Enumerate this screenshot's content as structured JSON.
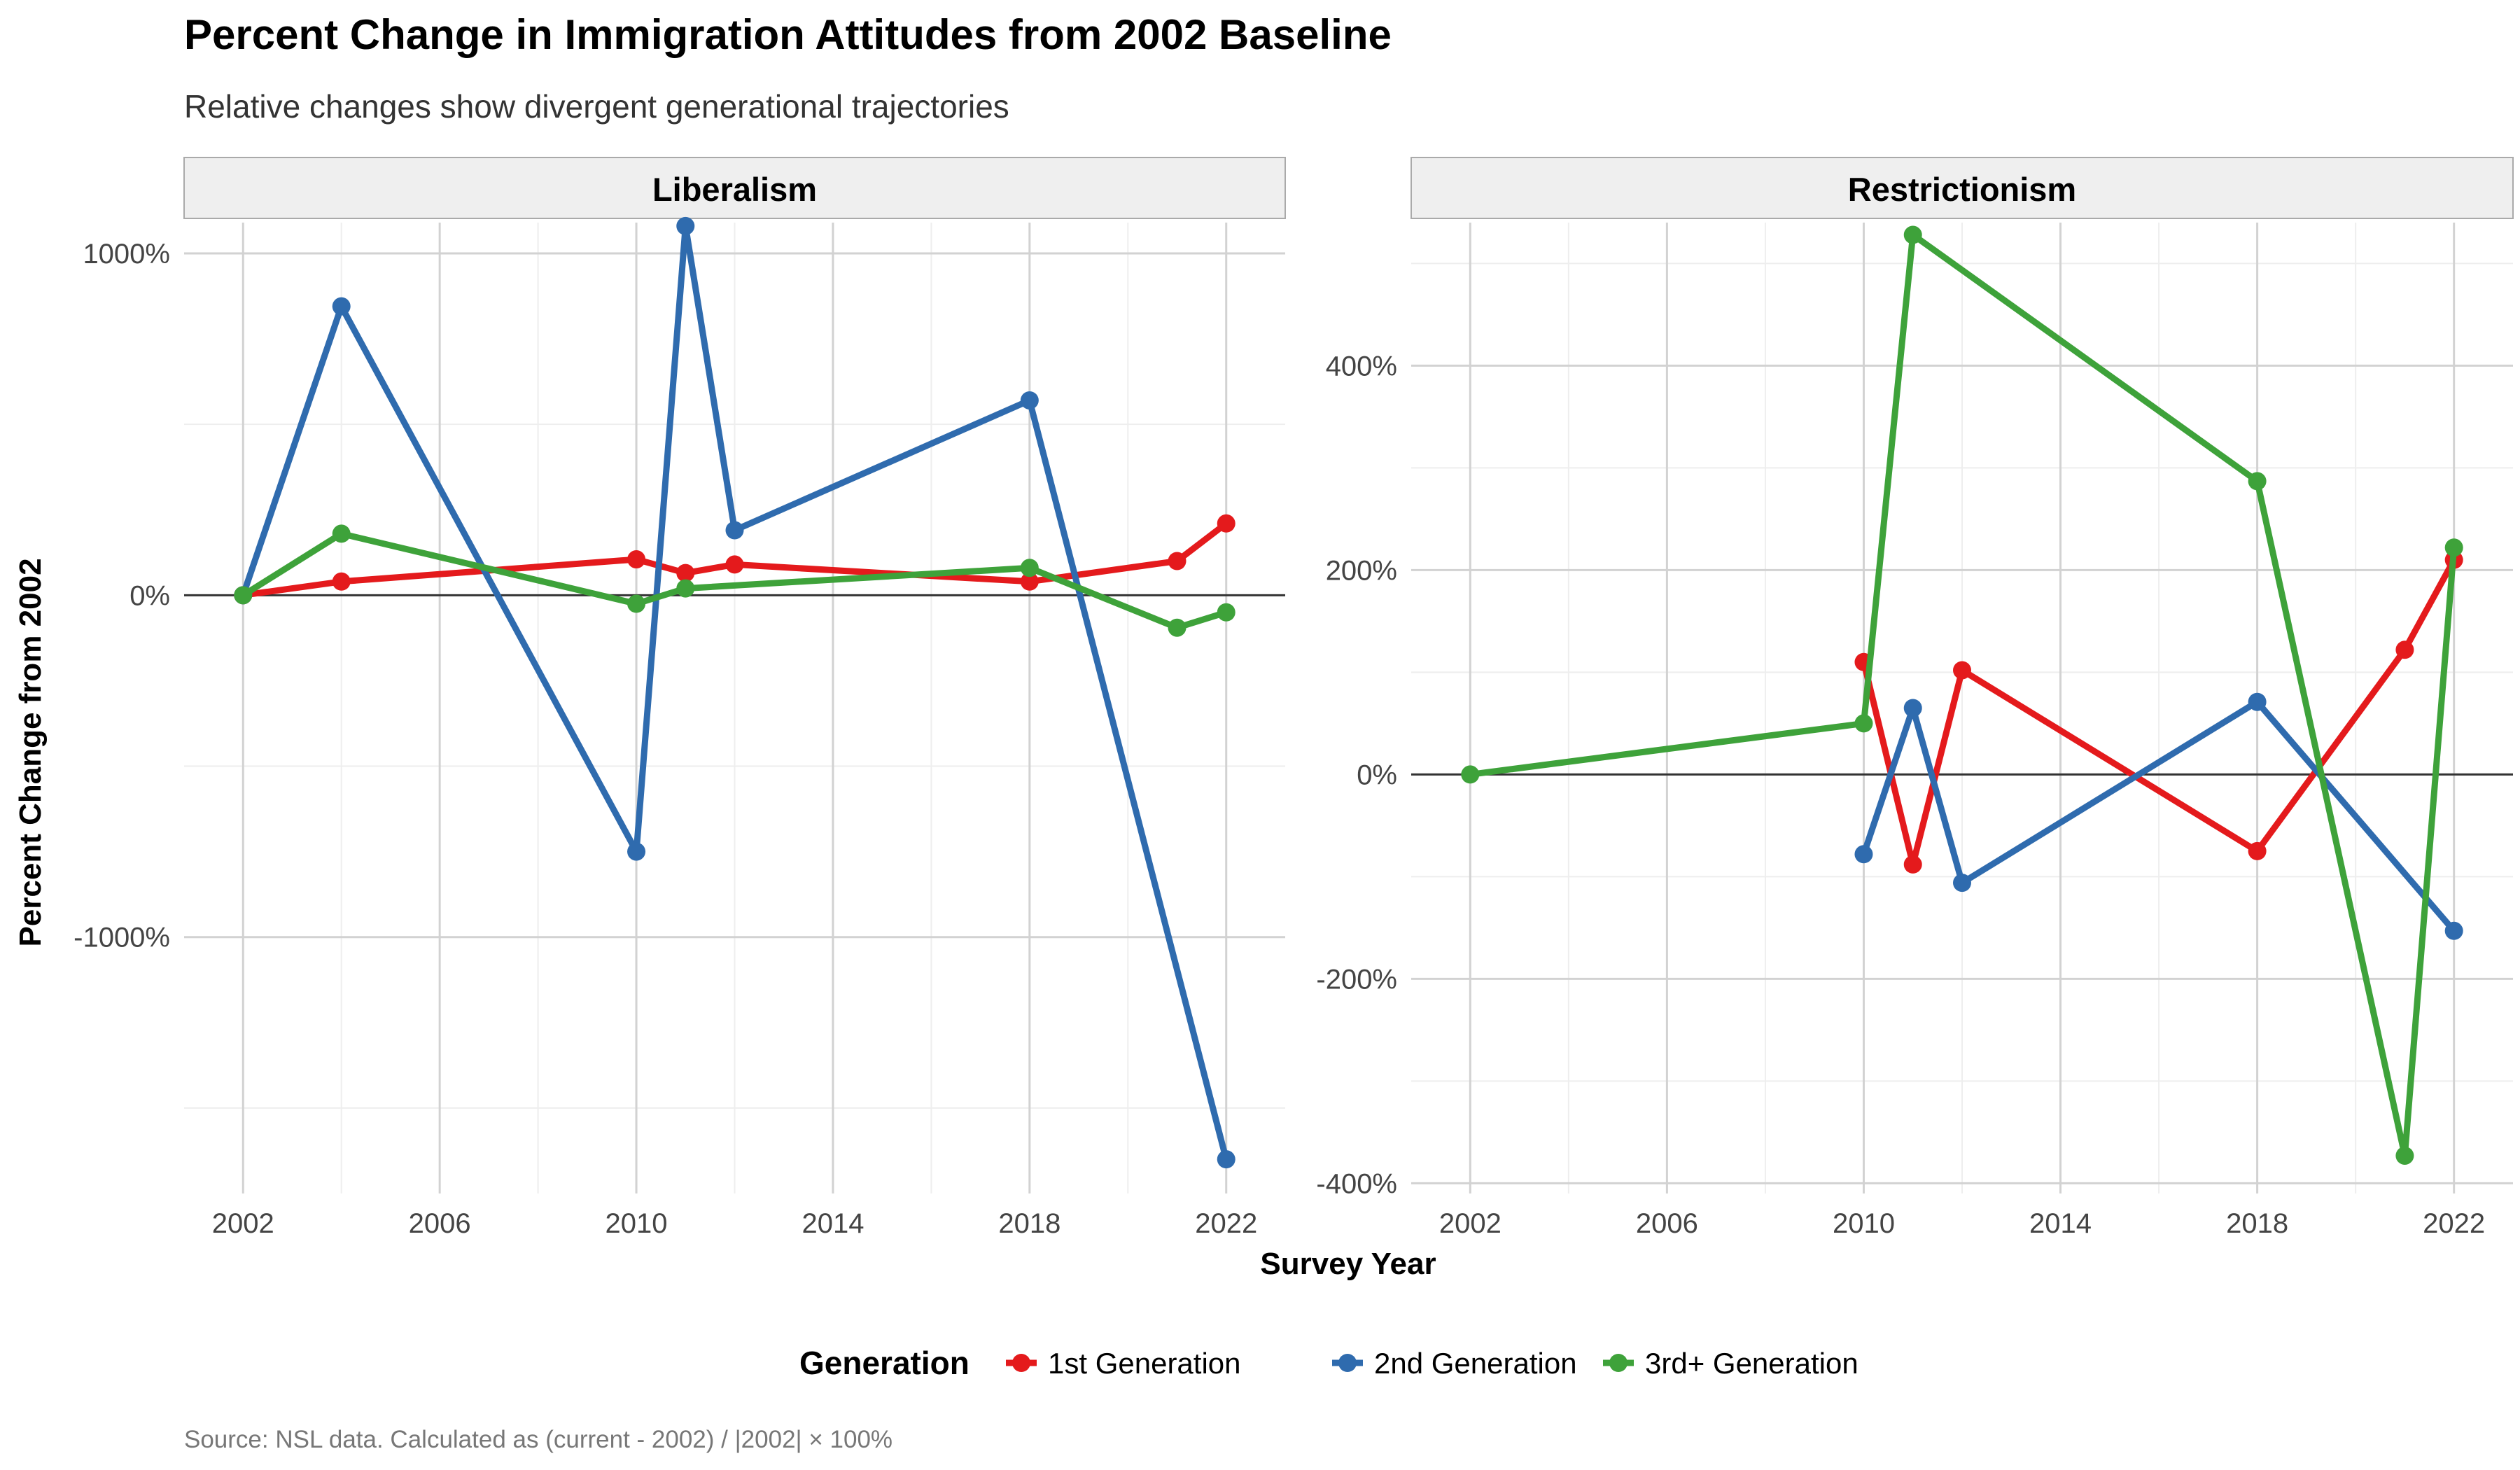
{
  "chart_data": {
    "type": "line",
    "title": "Percent Change in Immigration Attitudes from 2002 Baseline",
    "subtitle": "Relative changes show divergent generational trajectories",
    "xlabel": "Survey Year",
    "ylabel": "Percent Change from 2002",
    "caption": "Source: NSL data. Calculated as (current - 2002) / |2002| × 100%",
    "grid": true,
    "legend": {
      "title": "Generation",
      "position": "bottom",
      "entries": [
        "1st Generation",
        "2nd Generation",
        "3rd+ Generation"
      ]
    },
    "colors": {
      "1st Generation": "#E41A1C",
      "2nd Generation": "#2F6BAE",
      "3rd+ Generation": "#3EA23A"
    },
    "x_ticks": [
      2002,
      2006,
      2010,
      2014,
      2018,
      2022
    ],
    "panels": [
      {
        "facet": "Liberalism",
        "ylim": [
          -1750,
          1090
        ],
        "y_ticks": [
          1000,
          0,
          -1000
        ],
        "y_tick_labels": [
          "1000%",
          "0%",
          "-1000%"
        ],
        "baseline": 0,
        "series": [
          {
            "name": "1st Generation",
            "points": [
              [
                2002,
                0
              ],
              [
                2004,
                40
              ],
              [
                2010,
                105
              ],
              [
                2011,
                65
              ],
              [
                2012,
                90
              ],
              [
                2018,
                40
              ],
              [
                2021,
                100
              ],
              [
                2022,
                210
              ]
            ]
          },
          {
            "name": "2nd Generation",
            "points": [
              [
                2002,
                0
              ],
              [
                2004,
                845
              ],
              [
                2010,
                -750
              ],
              [
                2011,
                1080
              ],
              [
                2012,
                190
              ],
              [
                2018,
                570
              ],
              [
                2022,
                -1650
              ]
            ]
          },
          {
            "name": "3rd+ Generation",
            "points": [
              [
                2002,
                0
              ],
              [
                2004,
                180
              ],
              [
                2010,
                -25
              ],
              [
                2011,
                20
              ],
              [
                2018,
                80
              ],
              [
                2021,
                -95
              ],
              [
                2022,
                -50
              ]
            ]
          }
        ]
      },
      {
        "facet": "Restrictionism",
        "ylim": [
          -410,
          540
        ],
        "y_ticks": [
          400,
          200,
          0,
          -200,
          -400
        ],
        "y_tick_labels": [
          "400%",
          "200%",
          "0%",
          "-200%",
          "-400%"
        ],
        "baseline": 0,
        "series": [
          {
            "name": "1st Generation",
            "points": [
              [
                2010,
                110
              ],
              [
                2011,
                -88
              ],
              [
                2012,
                102
              ],
              [
                2018,
                -75
              ],
              [
                2021,
                122
              ],
              [
                2022,
                210
              ]
            ]
          },
          {
            "name": "2nd Generation",
            "points": [
              [
                2010,
                -78
              ],
              [
                2011,
                65
              ],
              [
                2012,
                -106
              ],
              [
                2018,
                71
              ],
              [
                2022,
                -153
              ]
            ]
          },
          {
            "name": "3rd+ Generation",
            "points": [
              [
                2002,
                0
              ],
              [
                2010,
                50
              ],
              [
                2011,
                528
              ],
              [
                2018,
                287
              ],
              [
                2021,
                -373
              ],
              [
                2022,
                222
              ]
            ]
          }
        ]
      }
    ]
  }
}
